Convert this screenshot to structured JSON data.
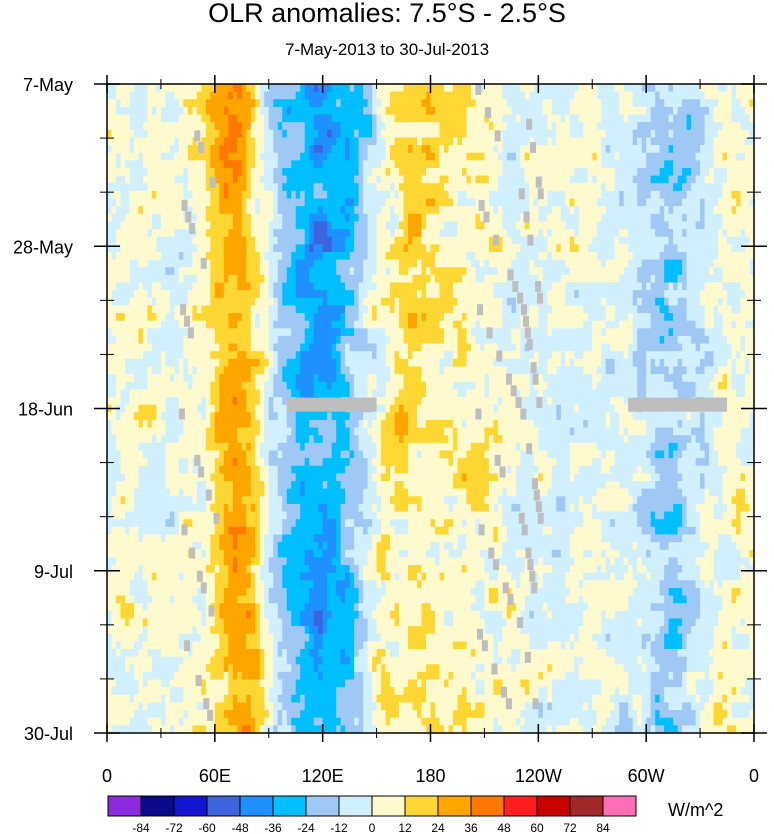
{
  "chart_data": {
    "type": "heatmap",
    "title": "OLR anomalies: 7.5°S - 2.5°S",
    "subtitle": "7-May-2013 to 30-Jul-2013",
    "x_ticks": [
      {
        "lon": 0,
        "label": "0"
      },
      {
        "lon": 60,
        "label": "60E"
      },
      {
        "lon": 120,
        "label": "120E"
      },
      {
        "lon": 180,
        "label": "180"
      },
      {
        "lon": 240,
        "label": "120W"
      },
      {
        "lon": 300,
        "label": "60W"
      },
      {
        "lon": 360,
        "label": "0"
      }
    ],
    "x_range": [
      0,
      360
    ],
    "y_ticks": [
      {
        "day": 0,
        "label": "7-May"
      },
      {
        "day": 21,
        "label": "28-May"
      },
      {
        "day": 42,
        "label": "18-Jun"
      },
      {
        "day": 63,
        "label": "9-Jul"
      },
      {
        "day": 84,
        "label": "30-Jul"
      }
    ],
    "y_range_days": [
      0,
      84
    ],
    "levels": [
      -84,
      -72,
      -60,
      -48,
      -36,
      -24,
      -12,
      0,
      12,
      24,
      36,
      48,
      60,
      72,
      84
    ],
    "colors": [
      "#8c2be2",
      "#0a0a8c",
      "#1414d2",
      "#3c64dc",
      "#1e90ff",
      "#00bfff",
      "#9fc8f5",
      "#d0f0ff",
      "#fffacd",
      "#ffd732",
      "#ffa500",
      "#ff7800",
      "#ff1e1e",
      "#c80000",
      "#a02828",
      "#ff6eb4"
    ],
    "units": "W/m^2",
    "missing_color": "#bebebe",
    "missing_bands": [
      {
        "day": 41.5,
        "lon_start": 100,
        "lon_end": 150
      },
      {
        "day": 41.5,
        "lon_start": 290,
        "lon_end": 345
      }
    ]
  }
}
